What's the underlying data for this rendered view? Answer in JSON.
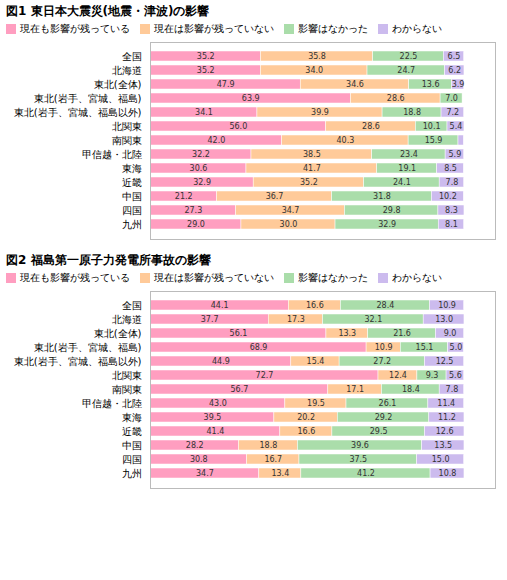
{
  "chart_data": [
    {
      "type": "bar",
      "orientation": "horizontal",
      "stacked": true,
      "title": "図1  東日本大震災(地震・津波)の影響",
      "categories": [
        "全国",
        "北海道",
        "東北(全体)",
        "東北(岩手、宮城、福島)",
        "東北(岩手、宮城、福島以外)",
        "北関東",
        "南関東",
        "甲信越・北陸",
        "東海",
        "近畿",
        "中国",
        "四国",
        "九州"
      ],
      "series": [
        {
          "name": "現在も影響が残っている",
          "color": "#FF9EC0",
          "values": [
            35.2,
            35.2,
            47.9,
            63.9,
            34.1,
            56.0,
            42.0,
            32.2,
            30.6,
            32.9,
            21.2,
            27.3,
            29.0
          ],
          "value_labels": [
            "35.2",
            "35.2",
            "47.9",
            "63.9",
            "34.1",
            "56.0",
            "42.0",
            "32.2",
            "30.6",
            "32.9",
            "21.2",
            "27.3",
            "29.0"
          ]
        },
        {
          "name": "現在は影響が残っていない",
          "color": "#FFCA99",
          "values": [
            35.8,
            34.0,
            34.6,
            28.6,
            39.9,
            28.6,
            40.3,
            38.5,
            41.7,
            35.2,
            36.7,
            34.7,
            30.0
          ],
          "value_labels": [
            "35.8",
            "34.0",
            "34.6",
            "28.6",
            "39.9",
            "28.6",
            "40.3",
            "38.5",
            "41.7",
            "35.2",
            "36.7",
            "34.7",
            "30.0"
          ]
        },
        {
          "name": "影響はなかった",
          "color": "#AADDAA",
          "values": [
            22.5,
            24.7,
            13.6,
            7.0,
            18.8,
            10.1,
            15.9,
            23.4,
            19.1,
            24.1,
            31.8,
            29.8,
            32.9
          ],
          "value_labels": [
            "22.5",
            "24.7",
            "13.6",
            "7.0",
            "18.8",
            "10.1",
            "15.9",
            "23.4",
            "19.1",
            "24.1",
            "31.8",
            "29.8",
            "32.9"
          ]
        },
        {
          "name": "わからない",
          "color": "#CCBBEE",
          "values": [
            6.5,
            6.2,
            3.9,
            0.0,
            7.2,
            5.4,
            1.7,
            5.9,
            8.5,
            7.8,
            10.2,
            8.3,
            8.1
          ],
          "value_labels": [
            "6.5",
            "6.2",
            "3.9",
            null,
            "7.2",
            "5.4",
            null,
            "5.9",
            "8.5",
            "7.8",
            "10.2",
            "8.3",
            "8.1"
          ]
        }
      ],
      "xlim": [
        0,
        110
      ],
      "tick_labels": "y",
      "data_labels": true,
      "legend": "top",
      "grid": false
    },
    {
      "type": "bar",
      "orientation": "horizontal",
      "stacked": true,
      "title": "図2  福島第一原子力発電所事故の影響",
      "categories": [
        "全国",
        "北海道",
        "東北(全体)",
        "東北(岩手、宮城、福島)",
        "東北(岩手、宮城、福島以外)",
        "北関東",
        "南関東",
        "甲信越・北陸",
        "東海",
        "近畿",
        "中国",
        "四国",
        "九州"
      ],
      "series": [
        {
          "name": "現在も影響が残っている",
          "color": "#FF9EC0",
          "values": [
            44.1,
            37.7,
            56.1,
            68.9,
            44.9,
            72.7,
            56.7,
            43.0,
            39.5,
            41.4,
            28.2,
            30.8,
            34.7
          ],
          "value_labels": [
            "44.1",
            "37.7",
            "56.1",
            "68.9",
            "44.9",
            "72.7",
            "56.7",
            "43.0",
            "39.5",
            "41.4",
            "28.2",
            "30.8",
            "34.7"
          ]
        },
        {
          "name": "現在は影響が残っていない",
          "color": "#FFCA99",
          "values": [
            16.6,
            17.3,
            13.3,
            10.9,
            15.4,
            12.4,
            17.1,
            19.5,
            20.2,
            16.6,
            18.8,
            16.7,
            13.4
          ],
          "value_labels": [
            "16.6",
            "17.3",
            "13.3",
            "10.9",
            "15.4",
            "12.4",
            "17.1",
            "19.5",
            "20.2",
            "16.6",
            "18.8",
            "16.7",
            "13.4"
          ]
        },
        {
          "name": "影響はなかった",
          "color": "#AADDAA",
          "values": [
            28.4,
            32.1,
            21.6,
            15.1,
            27.2,
            9.3,
            18.4,
            26.1,
            29.2,
            29.5,
            39.6,
            37.5,
            41.2
          ],
          "value_labels": [
            "28.4",
            "32.1",
            "21.6",
            "15.1",
            "27.2",
            "9.3",
            "18.4",
            "26.1",
            "29.2",
            "29.5",
            "39.6",
            "37.5",
            "41.2"
          ]
        },
        {
          "name": "わからない",
          "color": "#CCBBEE",
          "values": [
            10.9,
            13.0,
            9.0,
            5.0,
            12.5,
            5.6,
            7.8,
            11.4,
            11.2,
            12.6,
            13.5,
            15.0,
            10.8
          ],
          "value_labels": [
            "10.9",
            "13.0",
            "9.0",
            "5.0",
            "12.5",
            "5.6",
            "7.8",
            "11.4",
            "11.2",
            "12.6",
            "13.5",
            "15.0",
            "10.8"
          ]
        }
      ],
      "xlim": [
        0,
        110
      ],
      "tick_labels": "y",
      "data_labels": true,
      "legend": "top",
      "grid": false
    }
  ]
}
